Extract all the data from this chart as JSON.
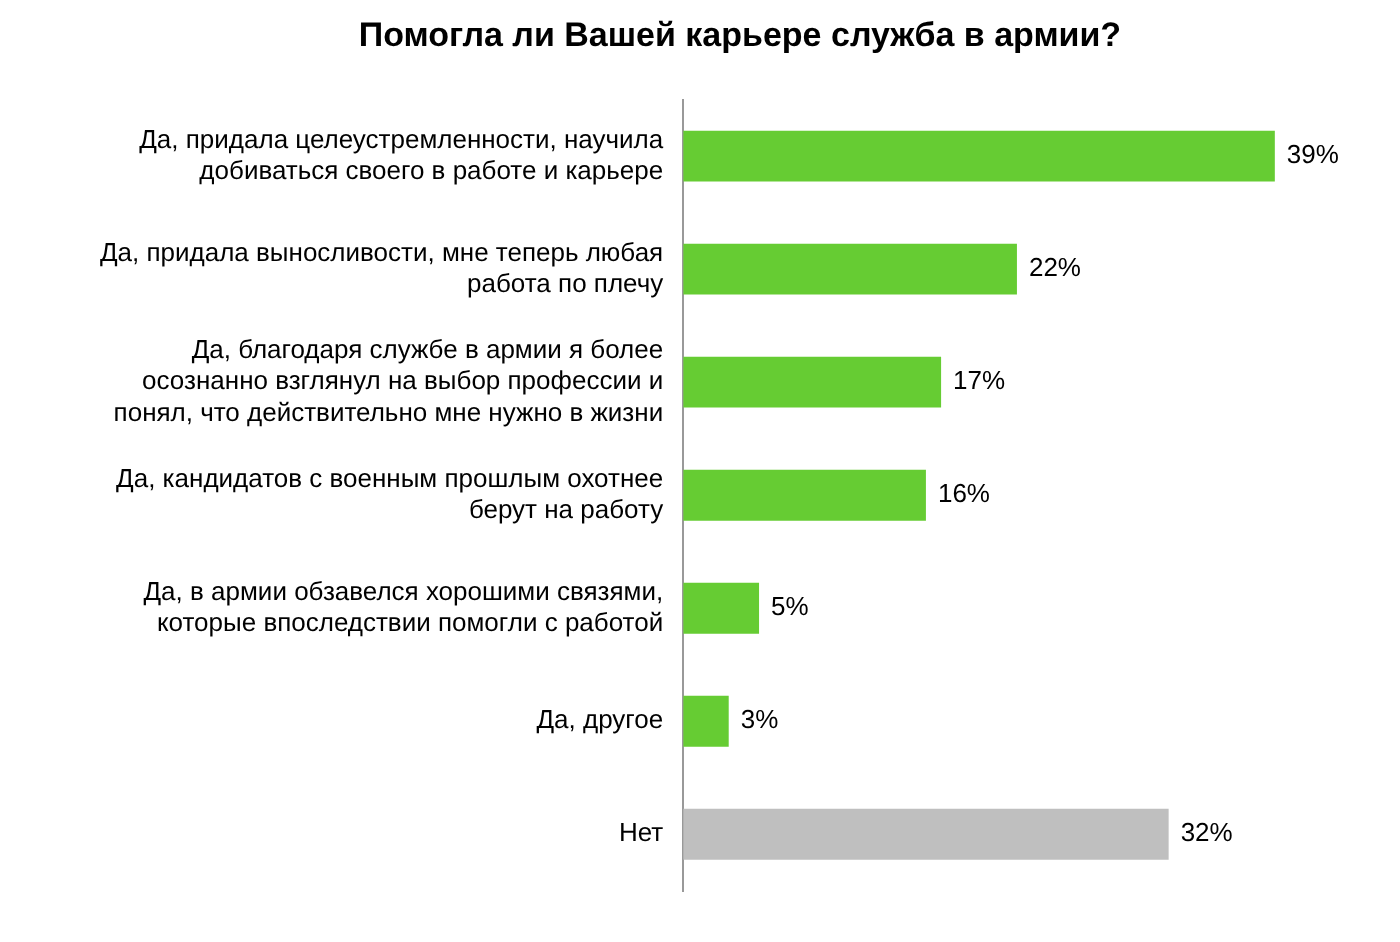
{
  "chart_data": {
    "type": "bar",
    "orientation": "horizontal",
    "title": "Помогла ли Вашей карьере служба в армии?",
    "categories": [
      "Да, придала целеустремленности, научила добиваться своего в работе и карьере",
      "Да, придала выносливости, мне теперь любая работа по плечу",
      "Да, благодаря службе в армии я более осознанно взглянул на выбор профессии и понял, что действительно мне нужно в жизни",
      "Да, кандидатов с военным прошлым охотнее берут на работу",
      "Да, в армии обзавелся хорошими связями, которые впоследствии помогли с работой",
      "Да, другое",
      "Нет"
    ],
    "values": [
      39,
      22,
      17,
      16,
      5,
      3,
      32
    ],
    "colors": [
      "#66cc33",
      "#66cc33",
      "#66cc33",
      "#66cc33",
      "#66cc33",
      "#66cc33",
      "#bfbfbf"
    ],
    "value_labels": [
      "39%",
      "22%",
      "17%",
      "16%",
      "5%",
      "3%",
      "32%"
    ],
    "grid": false,
    "legend": false,
    "tick_labels": "y"
  }
}
